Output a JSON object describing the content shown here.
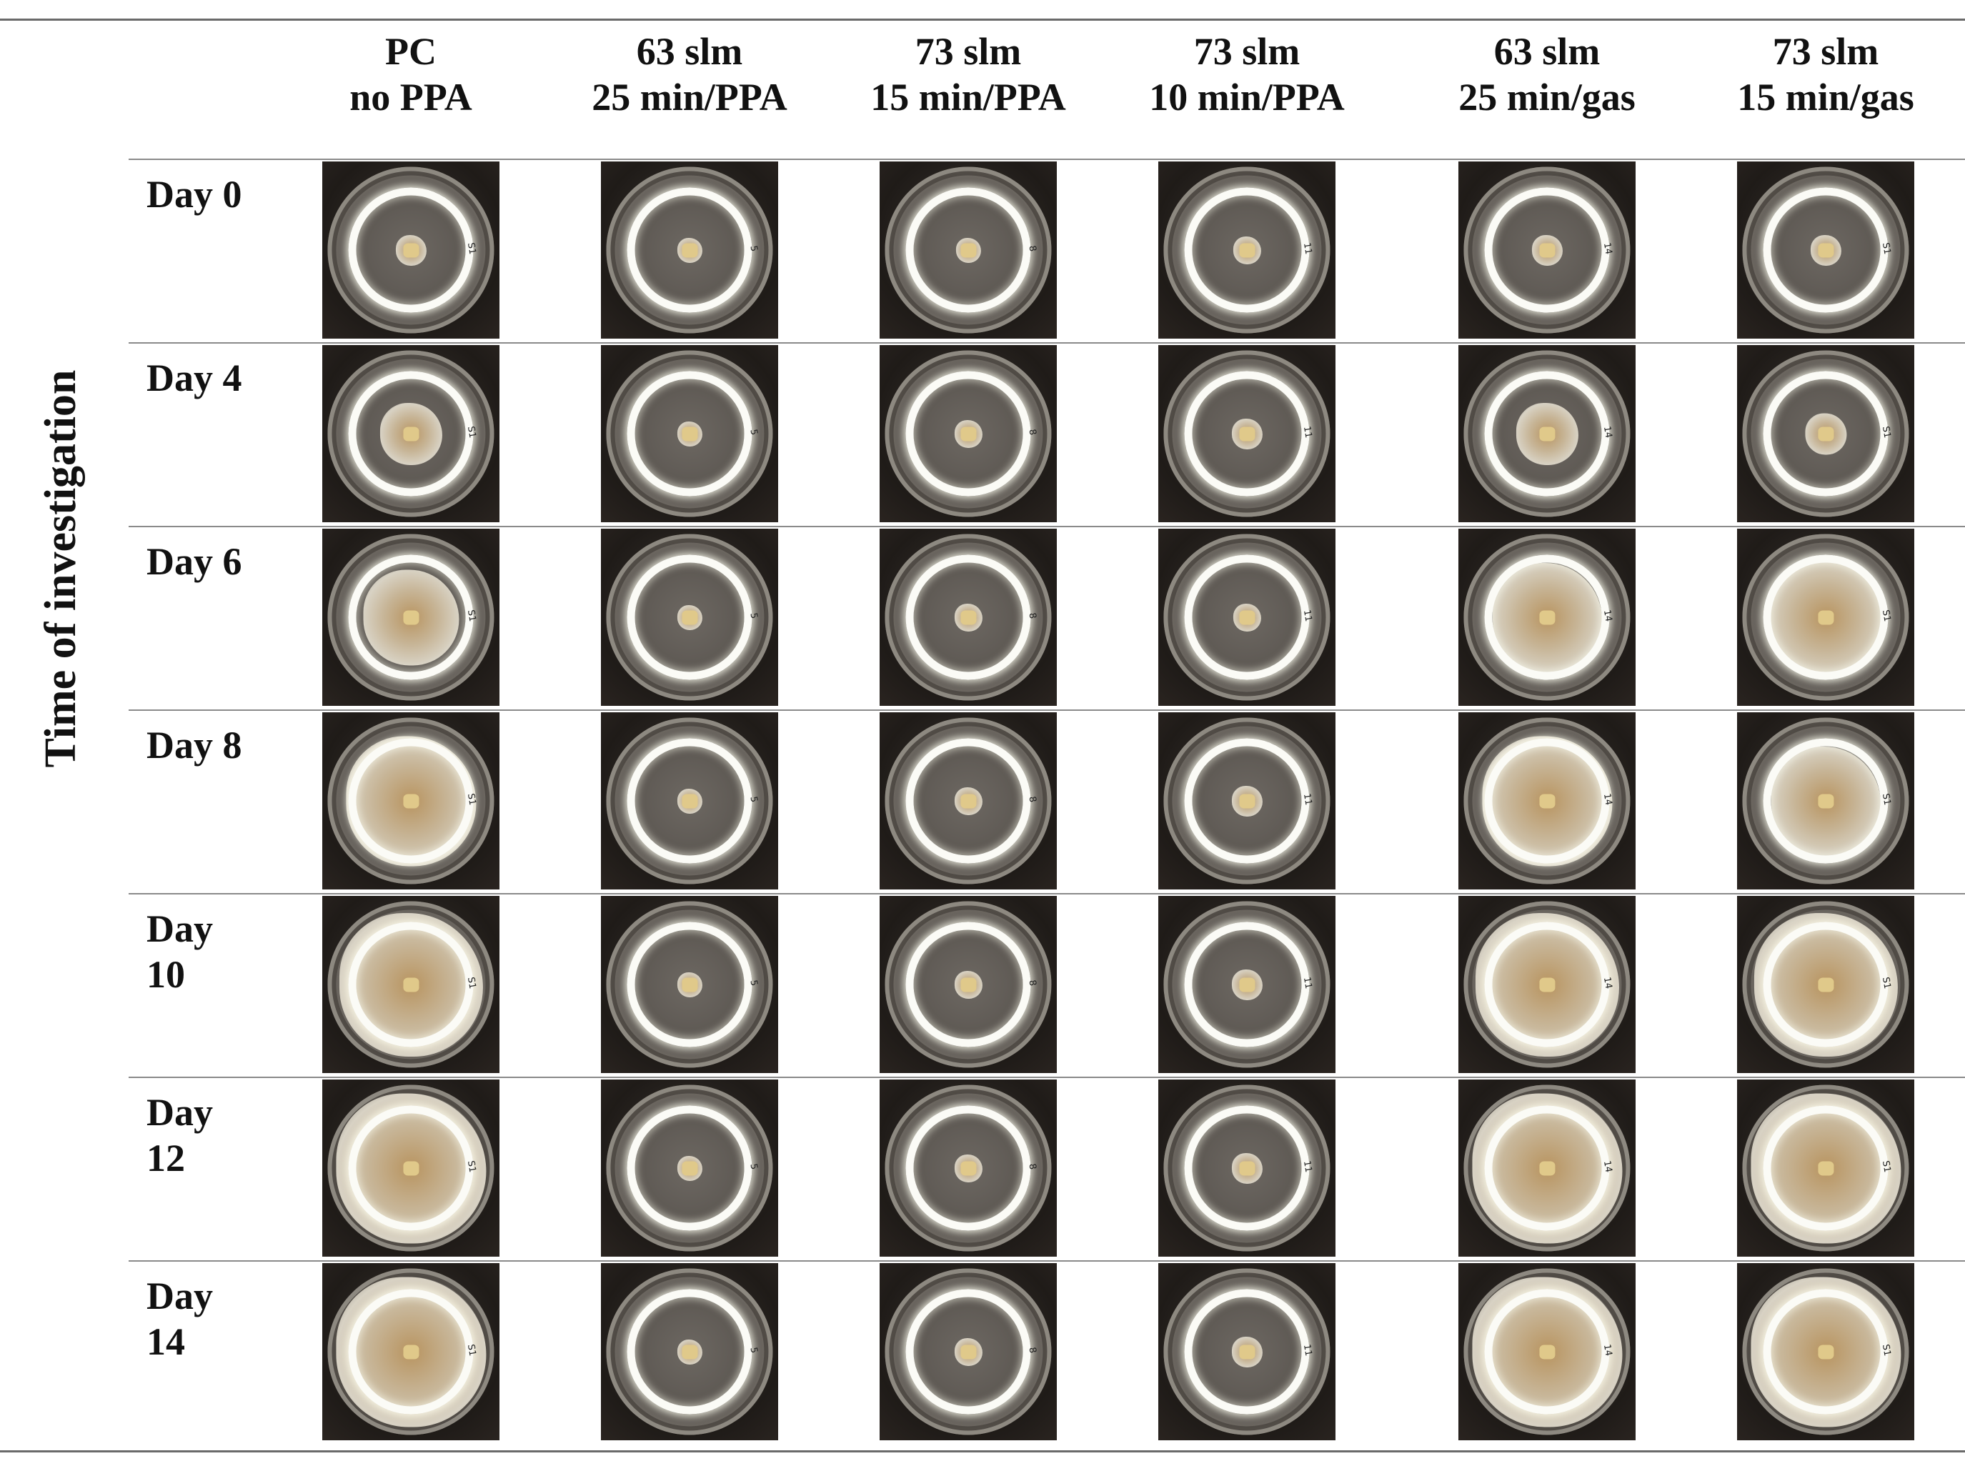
{
  "y_axis_label": "Time of investigation",
  "columns": [
    {
      "line1": "PC",
      "line2": "no PPA",
      "mark": "S1"
    },
    {
      "line1": "63 slm",
      "line2": "25 min/PPA",
      "mark": "5"
    },
    {
      "line1": "73 slm",
      "line2": "15 min/PPA",
      "mark": "8"
    },
    {
      "line1": "73 slm",
      "line2": "10 min/PPA",
      "mark": "11"
    },
    {
      "line1": "63 slm",
      "line2": "25 min/gas",
      "mark": "14"
    },
    {
      "line1": "73 slm",
      "line2": "15 min/gas",
      "mark": "S1"
    }
  ],
  "rows": [
    {
      "line1": "Day 0",
      "line2": "",
      "growth": [
        0.12,
        0.08,
        0.08,
        0.1,
        0.12,
        0.12
      ]
    },
    {
      "line1": "Day 4",
      "line2": "",
      "growth": [
        0.35,
        0.08,
        0.1,
        0.12,
        0.35,
        0.2
      ]
    },
    {
      "line1": "Day 6",
      "line2": "",
      "growth": [
        0.6,
        0.08,
        0.1,
        0.1,
        0.7,
        0.75
      ]
    },
    {
      "line1": "Day 8",
      "line2": "",
      "growth": [
        0.85,
        0.08,
        0.1,
        0.12,
        0.85,
        0.7
      ]
    },
    {
      "line1": "Day",
      "line2": "10",
      "growth": [
        0.95,
        0.08,
        0.1,
        0.12,
        0.95,
        0.95
      ]
    },
    {
      "line1": "Day",
      "line2": "12",
      "growth": [
        1.0,
        0.08,
        0.1,
        0.12,
        1.0,
        1.0
      ]
    },
    {
      "line1": "Day",
      "line2": "14",
      "growth": [
        1.0,
        0.08,
        0.1,
        0.12,
        1.0,
        1.0
      ]
    }
  ]
}
